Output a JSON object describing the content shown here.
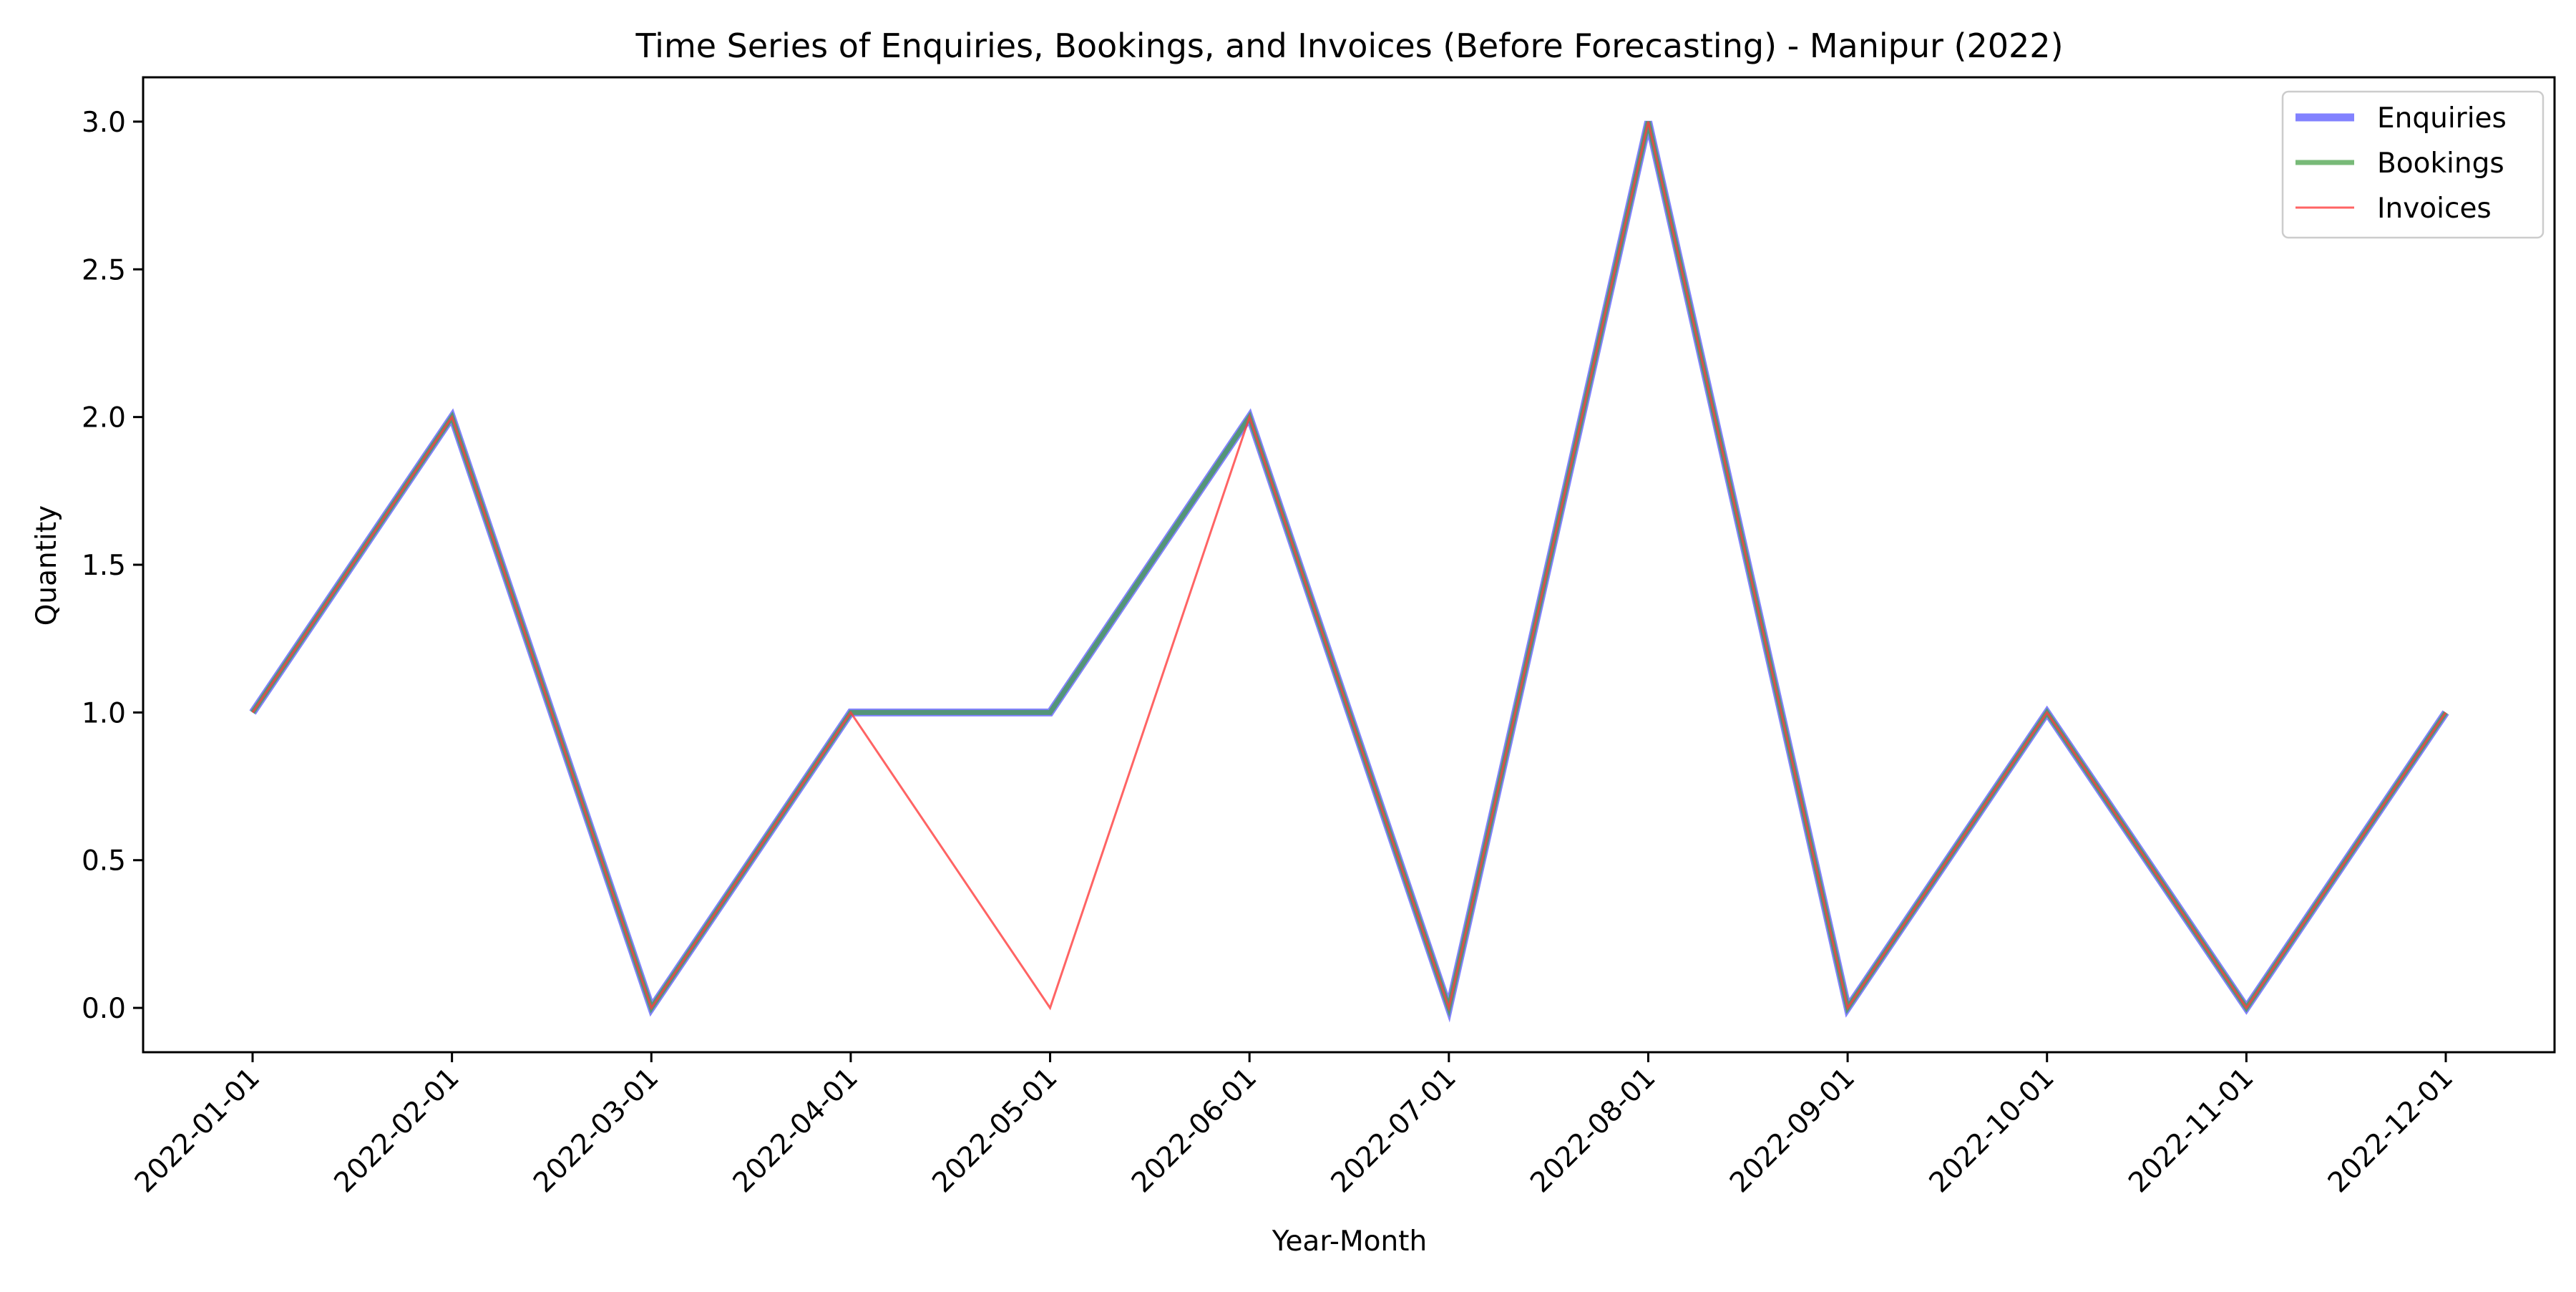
{
  "chart_data": {
    "type": "line",
    "title": "Time Series of Enquiries, Bookings, and Invoices (Before Forecasting) - Manipur (2022)",
    "xlabel": "Year-Month",
    "ylabel": "Quantity",
    "categories": [
      "2022-01-01",
      "2022-02-01",
      "2022-03-01",
      "2022-04-01",
      "2022-05-01",
      "2022-06-01",
      "2022-07-01",
      "2022-08-01",
      "2022-09-01",
      "2022-10-01",
      "2022-11-01",
      "2022-12-01"
    ],
    "ylim": [
      -0.15,
      3.15
    ],
    "yticks": [
      "0.0",
      "0.5",
      "1.0",
      "1.5",
      "2.0",
      "2.5",
      "3.0"
    ],
    "grid": false,
    "legend_position": "top-right",
    "series": [
      {
        "name": "Enquiries",
        "color": "#4d4dff",
        "values": [
          1,
          2,
          0,
          1,
          1,
          2,
          0,
          3,
          0,
          1,
          0,
          1
        ]
      },
      {
        "name": "Bookings",
        "color": "#3f9d3f",
        "values": [
          1,
          2,
          0,
          1,
          1,
          2,
          0,
          3,
          0,
          1,
          0,
          1
        ]
      },
      {
        "name": "Invoices",
        "color": "#ff3d3d",
        "values": [
          1,
          2,
          0,
          1,
          0,
          2,
          0,
          3,
          0,
          1,
          0,
          1
        ]
      }
    ]
  }
}
